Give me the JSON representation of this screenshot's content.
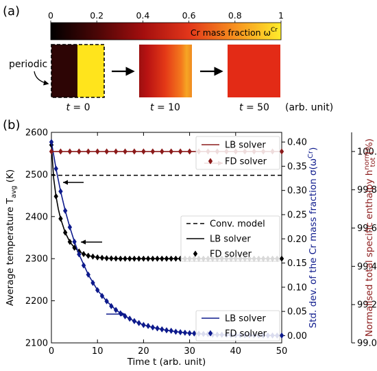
{
  "panel_a": {
    "label": "(a)",
    "colorbar": {
      "ticks": [
        "0",
        "0.2",
        "0.4",
        "0.6",
        "0.8",
        "1"
      ],
      "label": "Cr mass fraction ω",
      "label_sup": "Cr"
    },
    "periodic_label": "periodic",
    "snapshots": [
      {
        "t_label": "t",
        "t_value": "= 0"
      },
      {
        "t_label": "t",
        "t_value": "= 10"
      },
      {
        "t_label": "t",
        "t_value": "= 50"
      }
    ],
    "unit_label": "(arb. unit)"
  },
  "chart_data": {
    "type": "line",
    "panel_label": "(b)",
    "xlabel": "Time t (arb. unit)",
    "xlim": [
      0,
      50
    ],
    "x_ticks": [
      0,
      10,
      20,
      30,
      40,
      50
    ],
    "left_axis": {
      "label": "Average temperature T",
      "label_sub": "avg",
      "label_unit": "(K)",
      "ylim": [
        2100,
        2600
      ],
      "ticks": [
        2100,
        2200,
        2300,
        2400,
        2500,
        2600
      ]
    },
    "middle_axis": {
      "label": "Std. dev. of the Cr mass fraction σ(ω",
      "label_sup": "Cr",
      "label_end": ")",
      "ylim": [
        -0.015,
        0.42
      ],
      "ticks": [
        "0.00",
        "0.05",
        "0.10",
        "0.15",
        "0.20",
        "0.25",
        "0.30",
        "0.35",
        "0.40"
      ]
    },
    "right_axis": {
      "label": "Normalised total specific enthalpy h",
      "label_sup": "norm",
      "label_sub": "tot",
      "label_unit": "(%)",
      "ylim": [
        99.0,
        100.1
      ],
      "ticks": [
        "99.0",
        "99.2",
        "99.4",
        "99.6",
        "99.8",
        "100.0"
      ]
    },
    "colors": {
      "temperature": "#000000",
      "std_dev": "#0d1a8c",
      "enthalpy": "#8b1a1a"
    },
    "series": [
      {
        "axis": "left",
        "style": "dashed",
        "color": "#000000",
        "x": [
          0,
          50
        ],
        "y": [
          2498,
          2498
        ]
      },
      {
        "axis": "left",
        "style": "line",
        "color": "#000000",
        "x": [
          0,
          0.5,
          1,
          1.5,
          2,
          3,
          4,
          5,
          6,
          7,
          8,
          10,
          12,
          15,
          20,
          25,
          30,
          35,
          40,
          45,
          50
        ],
        "y": [
          2570,
          2490,
          2448,
          2418,
          2395,
          2362,
          2340,
          2326,
          2317,
          2311,
          2307,
          2303,
          2301,
          2300,
          2300,
          2300,
          2300,
          2300,
          2300,
          2300,
          2300
        ]
      },
      {
        "axis": "left",
        "style": "diamond",
        "color": "#000000",
        "x": [
          0,
          1,
          2,
          3,
          4,
          5,
          6,
          7,
          8,
          9,
          10,
          11,
          12,
          13,
          14,
          15,
          16,
          17,
          18,
          19,
          20,
          21,
          22,
          23,
          24,
          25,
          26,
          27,
          28,
          29,
          30,
          31,
          32,
          33,
          34,
          35,
          36,
          37,
          38,
          39,
          40,
          41,
          42,
          43,
          44,
          45,
          46,
          47,
          48,
          49,
          50
        ],
        "y": [
          2570,
          2448,
          2395,
          2362,
          2340,
          2326,
          2317,
          2311,
          2307,
          2305,
          2303,
          2302,
          2301,
          2300.6,
          2300.3,
          2300,
          2300,
          2300,
          2300,
          2300,
          2300,
          2300,
          2300,
          2300,
          2300,
          2300,
          2300,
          2300,
          2300,
          2300,
          2300,
          2300,
          2300,
          2300,
          2300,
          2300,
          2300,
          2300,
          2300,
          2300,
          2300,
          2300,
          2300,
          2300,
          2300,
          2300,
          2300,
          2300,
          2300,
          2300,
          2300
        ]
      },
      {
        "axis": "middle",
        "style": "line",
        "color": "#0d1a8c",
        "x": [
          0,
          1,
          2,
          3,
          4,
          5,
          6,
          8,
          10,
          12,
          14,
          16,
          18,
          20,
          22,
          25,
          28,
          30,
          35,
          40,
          45,
          50
        ],
        "y": [
          0.4,
          0.345,
          0.298,
          0.258,
          0.224,
          0.194,
          0.168,
          0.126,
          0.094,
          0.071,
          0.053,
          0.04,
          0.03,
          0.022,
          0.017,
          0.011,
          0.007,
          0.005,
          0.002,
          0.001,
          0.0005,
          0.0002
        ]
      },
      {
        "axis": "middle",
        "style": "diamond",
        "color": "#0d1a8c",
        "x": [
          0,
          1,
          2,
          3,
          4,
          5,
          6,
          7,
          8,
          9,
          10,
          11,
          12,
          13,
          14,
          15,
          16,
          17,
          18,
          19,
          20,
          21,
          22,
          23,
          24,
          25,
          26,
          27,
          28,
          29,
          30,
          31,
          32,
          33,
          34,
          35,
          36,
          37,
          38,
          39,
          40,
          41,
          42,
          43,
          44,
          45,
          46,
          47,
          48,
          49,
          50
        ],
        "y": [
          0.4,
          0.345,
          0.298,
          0.258,
          0.224,
          0.194,
          0.168,
          0.145,
          0.126,
          0.109,
          0.094,
          0.082,
          0.071,
          0.061,
          0.053,
          0.046,
          0.04,
          0.035,
          0.03,
          0.026,
          0.022,
          0.02,
          0.017,
          0.015,
          0.013,
          0.011,
          0.01,
          0.008,
          0.007,
          0.006,
          0.005,
          0.0045,
          0.004,
          0.0035,
          0.003,
          0.002,
          0.002,
          0.0018,
          0.0015,
          0.0012,
          0.001,
          0.001,
          0.0008,
          0.0007,
          0.0006,
          0.0005,
          0.0004,
          0.0003,
          0.0003,
          0.0002,
          0.0002
        ]
      },
      {
        "axis": "right",
        "style": "line",
        "color": "#8b1a1a",
        "x": [
          0,
          50
        ],
        "y": [
          100.0,
          100.0
        ]
      },
      {
        "axis": "right",
        "style": "diamond",
        "color": "#8b1a1a",
        "x": [
          0,
          2,
          4,
          6,
          8,
          10,
          12,
          14,
          16,
          18,
          20,
          22,
          24,
          26,
          28,
          30,
          32,
          34,
          36,
          38,
          40,
          42,
          44,
          46,
          48,
          50
        ],
        "y": [
          100.0,
          100.0,
          100.0,
          100.0,
          100.0,
          100.0,
          100.0,
          100.0,
          100.0,
          100.0,
          100.0,
          100.0,
          100.0,
          100.0,
          100.0,
          100.0,
          100.0,
          100.0,
          100.0,
          100.0,
          100.0,
          100.0,
          100.0,
          100.0,
          100.0,
          100.0
        ]
      }
    ],
    "legends": [
      {
        "entries": [
          {
            "style": "line",
            "color": "#8b1a1a",
            "label": "LB solver"
          },
          {
            "style": "diamond",
            "color": "#8b1a1a",
            "label": "FD solver"
          }
        ]
      },
      {
        "entries": [
          {
            "style": "dashed",
            "color": "#000000",
            "label": "Conv. model"
          },
          {
            "style": "line",
            "color": "#000000",
            "label": "LB solver"
          },
          {
            "style": "diamond",
            "color": "#000000",
            "label": "FD solver"
          }
        ]
      },
      {
        "entries": [
          {
            "style": "line",
            "color": "#0d1a8c",
            "label": "LB solver"
          },
          {
            "style": "diamond",
            "color": "#0d1a8c",
            "label": "FD solver"
          }
        ]
      }
    ]
  }
}
